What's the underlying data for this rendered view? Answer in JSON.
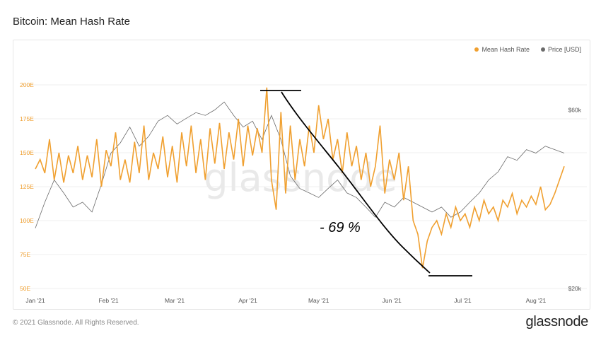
{
  "page": {
    "title": "Bitcoin: Mean Hash Rate",
    "copyright": "© 2021 Glassnode. All Rights Reserved.",
    "logo": "glassnode",
    "watermark": "glassnode"
  },
  "annotation": {
    "text": "- 69 %"
  },
  "colors": {
    "hash": "#f0a030",
    "price": "#6a6a6a",
    "grid": "#efefef",
    "annotation": "#000000"
  },
  "chart_data": {
    "type": "line",
    "title": "Bitcoin: Mean Hash Rate",
    "x_ticks": [
      "Jan '21",
      "Feb '21",
      "Mar '21",
      "Apr '21",
      "May '21",
      "Jun '21",
      "Jul '21",
      "Aug '21"
    ],
    "y_left": {
      "ticks": [
        "50E",
        "75E",
        "100E",
        "125E",
        "150E",
        "175E",
        "200E"
      ],
      "values": [
        50,
        75,
        100,
        125,
        150,
        175,
        200
      ],
      "range": [
        50,
        200
      ]
    },
    "y_right": {
      "ticks": [
        "$20k",
        "$60k"
      ],
      "values": [
        20000,
        60000
      ],
      "range": [
        20000,
        70000
      ],
      "scale": "log"
    },
    "legend": {
      "position": "top-right"
    },
    "series": [
      {
        "name": "Mean Hash Rate",
        "axis": "left",
        "color": "#f0a030",
        "x": [
          0,
          2,
          4,
          6,
          8,
          10,
          12,
          14,
          16,
          18,
          20,
          22,
          24,
          26,
          28,
          30,
          32,
          34,
          36,
          38,
          40,
          42,
          44,
          46,
          48,
          50,
          52,
          54,
          56,
          58,
          60,
          62,
          64,
          66,
          68,
          70,
          72,
          74,
          76,
          78,
          80,
          82,
          84,
          86,
          88,
          90,
          92,
          94,
          96,
          98,
          100,
          102,
          104,
          106,
          108,
          110,
          112,
          114,
          116,
          118,
          120,
          122,
          124,
          126,
          128,
          130,
          132,
          134,
          136,
          138,
          140,
          142,
          144,
          146,
          148,
          150,
          152,
          154,
          156,
          158,
          160,
          162,
          164,
          166,
          168,
          170,
          172,
          174,
          176,
          178,
          180,
          182,
          184,
          186,
          188,
          190,
          192,
          194,
          196,
          198,
          200,
          202,
          204,
          206,
          208,
          210,
          212,
          214,
          216,
          218,
          220,
          222,
          224
        ],
        "y": [
          138,
          145,
          135,
          160,
          130,
          150,
          128,
          148,
          135,
          155,
          130,
          148,
          132,
          160,
          125,
          152,
          140,
          165,
          130,
          145,
          128,
          158,
          135,
          170,
          130,
          150,
          138,
          162,
          132,
          155,
          128,
          165,
          140,
          170,
          135,
          160,
          130,
          168,
          142,
          172,
          138,
          165,
          145,
          175,
          140,
          170,
          148,
          168,
          150,
          198,
          130,
          108,
          180,
          120,
          170,
          130,
          160,
          140,
          170,
          150,
          185,
          160,
          175,
          145,
          160,
          135,
          165,
          140,
          155,
          130,
          150,
          125,
          140,
          170,
          120,
          145,
          130,
          150,
          115,
          140,
          100,
          90,
          65,
          85,
          95,
          100,
          90,
          105,
          95,
          110,
          100,
          105,
          95,
          110,
          100,
          115,
          105,
          110,
          100,
          115,
          110,
          120,
          105,
          115,
          110,
          118,
          112,
          125,
          108,
          112,
          120,
          130,
          140
        ],
        "x_unit": "days since Jan 1 2021",
        "y_unit": "EH/s"
      },
      {
        "name": "Price [USD]",
        "axis": "right",
        "color": "#6a6a6a",
        "x": [
          0,
          4,
          8,
          12,
          16,
          20,
          24,
          28,
          32,
          36,
          40,
          44,
          48,
          52,
          56,
          60,
          64,
          68,
          72,
          76,
          80,
          84,
          88,
          92,
          96,
          100,
          104,
          108,
          112,
          116,
          120,
          124,
          128,
          132,
          136,
          140,
          144,
          148,
          152,
          156,
          160,
          164,
          168,
          172,
          176,
          180,
          184,
          188,
          192,
          196,
          200,
          204,
          208,
          212,
          216,
          220,
          224
        ],
        "y": [
          29000,
          34000,
          39000,
          36000,
          33000,
          34000,
          32000,
          38000,
          46000,
          49000,
          54000,
          48000,
          51000,
          56000,
          58000,
          55000,
          57000,
          59000,
          58000,
          60000,
          63000,
          58000,
          54000,
          56000,
          50000,
          58000,
          50000,
          40000,
          37000,
          36000,
          35000,
          37000,
          39000,
          36000,
          35000,
          33000,
          31000,
          34000,
          33000,
          35000,
          34000,
          33000,
          32000,
          33000,
          31000,
          32000,
          34000,
          36000,
          39000,
          41000,
          45000,
          44000,
          47000,
          46000,
          48000,
          47000,
          46000
        ],
        "x_unit": "days since Jan 1 2021",
        "y_unit": "USD"
      }
    ]
  }
}
